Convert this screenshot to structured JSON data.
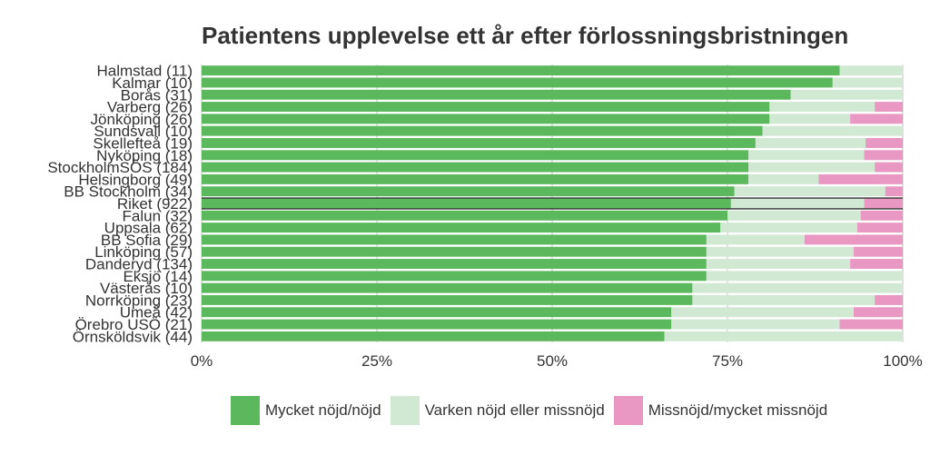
{
  "chart_data": {
    "type": "bar",
    "orientation": "horizontal",
    "stacked": true,
    "title": "Patientens upplevelse ett år efter förlossningsbristningen",
    "xlabel": "",
    "ylabel": "",
    "xlim": [
      0,
      100
    ],
    "x_ticks": [
      "0%",
      "25%",
      "50%",
      "75%",
      "100%"
    ],
    "grid": true,
    "legend_position": "bottom",
    "highlight_category": "Riket (922)",
    "categories": [
      "Halmstad (11)",
      "Kalmar (10)",
      "Borås (31)",
      "Varberg (26)",
      "Jönköping (26)",
      "Sundsvall (10)",
      "Skellefteå (19)",
      "Nyköping (18)",
      "StockholmSÖS (184)",
      "Helsingborg (49)",
      "BB Stockholm (34)",
      "Riket (922)",
      "Falun (32)",
      "Uppsala (62)",
      "BB Sofia (29)",
      "Linköping (57)",
      "Danderyd (134)",
      "Eksjö (14)",
      "Västerås (10)",
      "Norrköping (23)",
      "Umeå (42)",
      "Örebro USÖ (21)",
      "Örnsköldsvik (44)"
    ],
    "series": [
      {
        "name": "Mycket nöjd/nöjd",
        "color": "#5cb85c",
        "values": [
          91,
          90,
          84,
          81,
          81,
          80,
          79,
          78,
          78,
          78,
          76,
          75.5,
          75,
          74,
          72,
          72,
          72,
          72,
          70,
          70,
          67,
          67,
          66
        ]
      },
      {
        "name": "Varken nöjd eller missnöjd",
        "color": "#d1e9d3",
        "values": [
          9,
          10,
          16,
          15,
          11.5,
          20,
          15.7,
          16.5,
          18,
          10,
          21.5,
          19,
          19,
          19.5,
          14,
          21,
          20.5,
          28,
          30,
          26,
          26,
          24,
          34
        ]
      },
      {
        "name": "Missnöjd/mycket missnöjd",
        "color": "#e898c2",
        "values": [
          0,
          0,
          0,
          4,
          7.5,
          0,
          5.3,
          5.5,
          4,
          12,
          2.5,
          5.5,
          6,
          6.5,
          14,
          7,
          7.5,
          0,
          0,
          4,
          7,
          9,
          0
        ]
      }
    ]
  }
}
